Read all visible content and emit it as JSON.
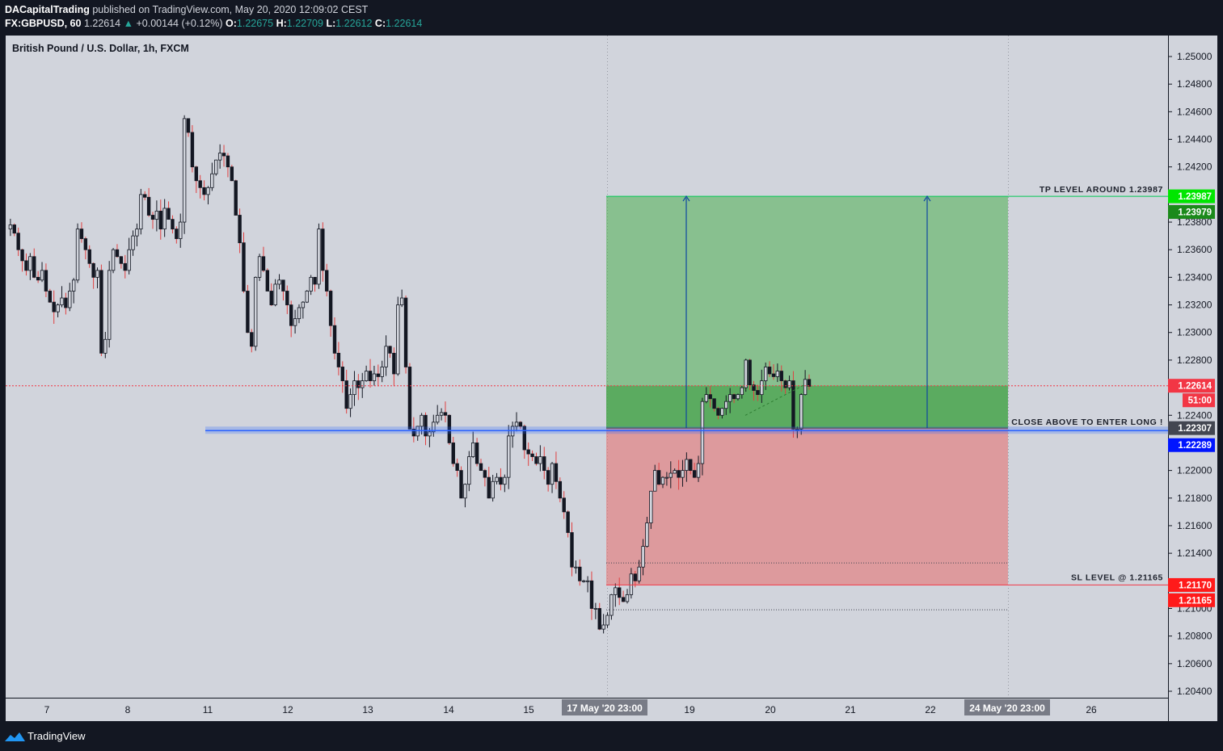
{
  "header": {
    "author": "DACapitalTrading",
    "published_text": "published on TradingView.com, May 20, 2020 12:09:02 CEST",
    "symbol": "FX:GBPUSD, 60",
    "last": "1.22614",
    "arrow": "▲",
    "change": "+0.00144 (+0.12%)",
    "o_label": "O:",
    "o_value": "1.22675",
    "h_label": "H:",
    "h_value": "1.22709",
    "l_label": "L:",
    "l_value": "1.22612",
    "c_label": "C:",
    "c_value": "1.22614"
  },
  "footer": {
    "brand": "TradingView",
    "icon": "tradingview-logo-icon"
  },
  "colors": {
    "background": "#d1d4dc",
    "up": "#131722",
    "down": "#131722",
    "wick_down": "#e04040",
    "profit_zone": "#4caf50",
    "loss_zone": "#e57373",
    "entry_line": "#2962ff",
    "tp_tag": "#00e600",
    "tp2_tag": "#1b8a1b",
    "sl_tag": "#ff1a1a",
    "last_tag": "#f23645",
    "entry_tag": "#0015ff",
    "close_tag": "#434651"
  },
  "chart_data": {
    "type": "candlestick",
    "title": "British Pound / U.S. Dollar, 1h, FXCM",
    "x_tick_labels": [
      "7",
      "8",
      "11",
      "12",
      "13",
      "14",
      "15",
      "17 May '20  23:00",
      "19",
      "20",
      "21",
      "22",
      "24 May '20  23:00",
      "26"
    ],
    "y_tick_labels": [
      "1.25000",
      "1.24800",
      "1.24600",
      "1.24400",
      "1.24200",
      "1.23800",
      "1.23600",
      "1.23400",
      "1.23200",
      "1.23000",
      "1.22800",
      "1.22400",
      "1.22000",
      "1.21800",
      "1.21600",
      "1.21400",
      "1.21000",
      "1.20800",
      "1.20600",
      "1.20400"
    ],
    "ylim": [
      1.2037,
      1.2514
    ],
    "trade": {
      "entry": 1.22307,
      "take_profit": 1.23987,
      "stop_loss": 1.2117
    },
    "levels": {
      "tp_note": "TP LEVEL AROUND 1.23987",
      "entry_note": "CLOSE ABOVE TO ENTER LONG !",
      "sl_note": "SL LEVEL @ 1.21165",
      "blue_line": 1.22289,
      "last_price": 1.22614,
      "countdown": "51:00"
    },
    "axis_tags": [
      {
        "label": "1.23987",
        "value": 1.23987,
        "color_key": "tp_tag"
      },
      {
        "label": "1.23979",
        "value": 1.23979,
        "color_key": "tp2_tag",
        "offset_rows": 1
      },
      {
        "label": "1.22614",
        "value": 1.22614,
        "color_key": "last_tag"
      },
      {
        "label": "51:00",
        "value": 1.22614,
        "color_key": "last_tag",
        "offset_rows": 1
      },
      {
        "label": "1.22307",
        "value": 1.22307,
        "color_key": "close_tag"
      },
      {
        "label": "1.22289",
        "value": 1.22289,
        "color_key": "entry_tag",
        "offset_rows": 1
      },
      {
        "label": "1.21170",
        "value": 1.2117,
        "color_key": "sl_tag"
      },
      {
        "label": "1.21165",
        "value": 1.21165,
        "color_key": "sl_tag",
        "offset_rows": 1
      }
    ],
    "dotted_levels": [
      1.2133,
      1.2099
    ],
    "price_path": [
      1.2375,
      1.2378,
      1.2372,
      1.236,
      1.2352,
      1.2345,
      1.2355,
      1.234,
      1.2338,
      1.2345,
      1.233,
      1.2322,
      1.2315,
      1.232,
      1.2325,
      1.2318,
      1.233,
      1.2338,
      1.2375,
      1.2368,
      1.236,
      1.235,
      1.234,
      1.2345,
      1.2285,
      1.2295,
      1.2345,
      1.236,
      1.2355,
      1.235,
      1.2345,
      1.236,
      1.237,
      1.2375,
      1.24,
      1.2398,
      1.2385,
      1.2382,
      1.2388,
      1.2375,
      1.239,
      1.2382,
      1.2375,
      1.2368,
      1.238,
      1.2455,
      1.2445,
      1.242,
      1.241,
      1.2405,
      1.24,
      1.2405,
      1.2415,
      1.2425,
      1.243,
      1.2428,
      1.242,
      1.241,
      1.2385,
      1.2365,
      1.233,
      1.23,
      1.229,
      1.234,
      1.2355,
      1.2345,
      1.233,
      1.232,
      1.2335,
      1.2338,
      1.233,
      1.232,
      1.2305,
      1.231,
      1.2318,
      1.2322,
      1.233,
      1.234,
      1.2335,
      1.2375,
      1.2345,
      1.233,
      1.2305,
      1.2285,
      1.2275,
      1.2265,
      1.2245,
      1.2255,
      1.2265,
      1.226,
      1.2265,
      1.2272,
      1.2265,
      1.227,
      1.2268,
      1.2275,
      1.229,
      1.2285,
      1.227,
      1.232,
      1.2325,
      1.2275,
      1.223,
      1.2225,
      1.2232,
      1.224,
      1.2225,
      1.2228,
      1.2235,
      1.224,
      1.2242,
      1.224,
      1.222,
      1.2205,
      1.22,
      1.218,
      1.219,
      1.221,
      1.222,
      1.2205,
      1.22,
      1.2195,
      1.218,
      1.2192,
      1.2195,
      1.219,
      1.2195,
      1.2225,
      1.2232,
      1.2235,
      1.2232,
      1.2215,
      1.2212,
      1.221,
      1.2205,
      1.221,
      1.22,
      1.219,
      1.2205,
      1.2192,
      1.218,
      1.217,
      1.2155,
      1.213,
      1.213,
      1.212,
      1.212,
      1.212,
      1.21,
      1.21,
      1.2085,
      1.2088,
      1.2095,
      1.211,
      1.2115,
      1.2108,
      1.2105,
      1.211,
      1.2125,
      1.212,
      1.213,
      1.2145,
      1.2162,
      1.2185,
      1.22,
      1.219,
      1.2195,
      1.2195,
      1.2198,
      1.22,
      1.2195,
      1.22,
      1.2208,
      1.22,
      1.2195,
      1.2205,
      1.225,
      1.2255,
      1.2252,
      1.2245,
      1.224,
      1.2245,
      1.225,
      1.2255,
      1.2252,
      1.2255,
      1.226,
      1.228,
      1.2262,
      1.2258,
      1.2255,
      1.2265,
      1.2275,
      1.227,
      1.2268,
      1.2272,
      1.2265,
      1.226,
      1.2265,
      1.223,
      1.223,
      1.2255,
      1.2266,
      1.2261
    ]
  }
}
